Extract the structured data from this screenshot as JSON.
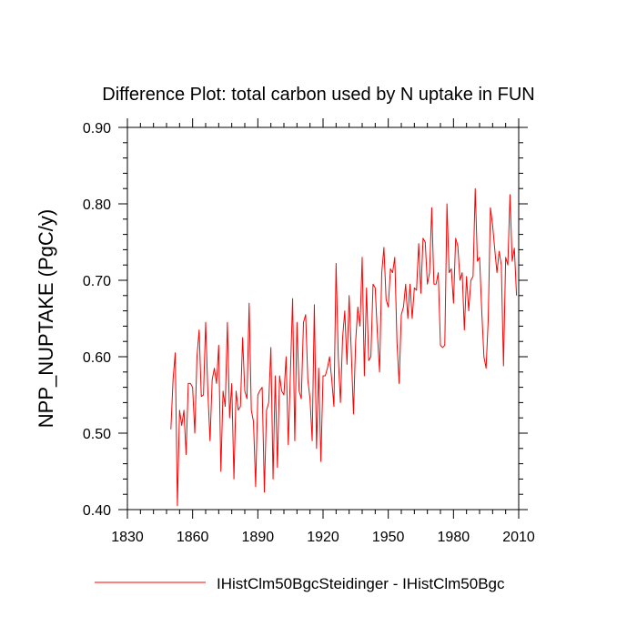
{
  "chart_data": {
    "type": "line",
    "title": "Difference Plot: total carbon used by N uptake in FUN",
    "xlabel": "",
    "ylabel": "NPP_NUPTAKE  (PgC/y)",
    "xlim": [
      1830,
      2010
    ],
    "ylim": [
      0.4,
      0.9
    ],
    "x_ticks": [
      1830,
      1860,
      1890,
      1920,
      1950,
      1980,
      2010
    ],
    "x_tick_labels": [
      "1830",
      "1860",
      "1890",
      "1920",
      "1950",
      "1980",
      "2010"
    ],
    "y_ticks": [
      0.4,
      0.5,
      0.6,
      0.7,
      0.8,
      0.9
    ],
    "y_tick_labels": [
      "0.40",
      "0.50",
      "0.60",
      "0.70",
      "0.80",
      "0.90"
    ],
    "grid": false,
    "legend_position": "bottom-center",
    "series": [
      {
        "name": "IHistClm50BgcSteidinger - IHistClm50Bgc",
        "color": "#ff0000",
        "x_start": 1850,
        "x_step": 1,
        "values": [
          0.505,
          0.57,
          0.605,
          0.405,
          0.53,
          0.51,
          0.53,
          0.472,
          0.565,
          0.565,
          0.56,
          0.5,
          0.6,
          0.635,
          0.548,
          0.55,
          0.645,
          0.555,
          0.49,
          0.57,
          0.585,
          0.565,
          0.615,
          0.45,
          0.555,
          0.535,
          0.645,
          0.52,
          0.565,
          0.44,
          0.555,
          0.53,
          0.535,
          0.625,
          0.555,
          0.545,
          0.67,
          0.53,
          0.515,
          0.43,
          0.55,
          0.556,
          0.56,
          0.423,
          0.53,
          0.54,
          0.612,
          0.44,
          0.575,
          0.455,
          0.575,
          0.555,
          0.55,
          0.6,
          0.485,
          0.58,
          0.676,
          0.49,
          0.645,
          0.555,
          0.545,
          0.645,
          0.655,
          0.57,
          0.545,
          0.49,
          0.668,
          0.48,
          0.585,
          0.463,
          0.575,
          0.575,
          0.585,
          0.6,
          0.57,
          0.535,
          0.722,
          0.6,
          0.54,
          0.625,
          0.66,
          0.59,
          0.68,
          0.605,
          0.525,
          0.62,
          0.665,
          0.64,
          0.73,
          0.575,
          0.69,
          0.595,
          0.6,
          0.695,
          0.69,
          0.63,
          0.58,
          0.71,
          0.743,
          0.675,
          0.665,
          0.715,
          0.71,
          0.73,
          0.62,
          0.565,
          0.655,
          0.665,
          0.695,
          0.65,
          0.695,
          0.65,
          0.69,
          0.687,
          0.748,
          0.683,
          0.755,
          0.75,
          0.695,
          0.71,
          0.795,
          0.695,
          0.695,
          0.71,
          0.615,
          0.612,
          0.615,
          0.8,
          0.71,
          0.715,
          0.67,
          0.755,
          0.745,
          0.7,
          0.71,
          0.635,
          0.705,
          0.66,
          0.7,
          0.705,
          0.82,
          0.725,
          0.73,
          0.66,
          0.6,
          0.585,
          0.65,
          0.795,
          0.772,
          0.74,
          0.71,
          0.738,
          0.72,
          0.588,
          0.73,
          0.72,
          0.812,
          0.725,
          0.742,
          0.68
        ]
      }
    ]
  }
}
